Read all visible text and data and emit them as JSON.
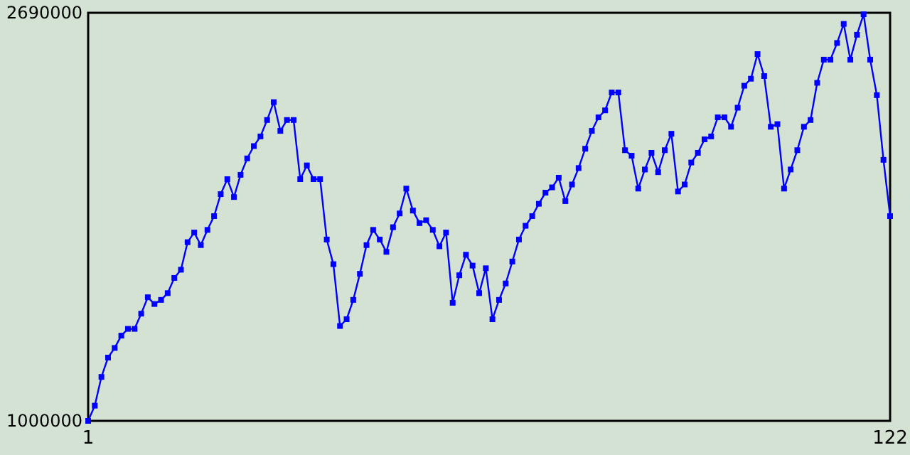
{
  "chart_data": {
    "type": "line",
    "marker": "square",
    "line_style": "solid",
    "x": [
      1,
      2,
      3,
      4,
      5,
      6,
      7,
      8,
      9,
      10,
      11,
      12,
      13,
      14,
      15,
      16,
      17,
      18,
      19,
      20,
      21,
      22,
      23,
      24,
      25,
      26,
      27,
      28,
      29,
      30,
      31,
      32,
      33,
      34,
      35,
      36,
      37,
      38,
      39,
      40,
      41,
      42,
      43,
      44,
      45,
      46,
      47,
      48,
      49,
      50,
      51,
      52,
      53,
      54,
      55,
      56,
      57,
      58,
      59,
      60,
      61,
      62,
      63,
      64,
      65,
      66,
      67,
      68,
      69,
      70,
      71,
      72,
      73,
      74,
      75,
      76,
      77,
      78,
      79,
      80,
      81,
      82,
      83,
      84,
      85,
      86,
      87,
      88,
      89,
      90,
      91,
      92,
      93,
      94,
      95,
      96,
      97,
      98,
      99,
      100,
      101,
      102,
      103,
      104,
      105,
      106,
      107,
      108,
      109,
      110,
      111,
      112,
      113,
      114,
      115,
      116,
      117,
      118,
      119,
      120,
      121,
      122
    ],
    "series": [
      {
        "color": "#0000ff",
        "values": [
          1000000,
          1063000,
          1182000,
          1262000,
          1302000,
          1353000,
          1381000,
          1381000,
          1444000,
          1512000,
          1484000,
          1501000,
          1529000,
          1592000,
          1626000,
          1740000,
          1780000,
          1728000,
          1791000,
          1848000,
          1939000,
          2001000,
          1927000,
          2019000,
          2087000,
          2138000,
          2178000,
          2246000,
          2320000,
          2201000,
          2246000,
          2246000,
          2001000,
          2058000,
          2001000,
          2001000,
          1751000,
          1649000,
          1393000,
          1421000,
          1501000,
          1609000,
          1728000,
          1791000,
          1751000,
          1700000,
          1802000,
          1859000,
          1962000,
          1871000,
          1819000,
          1831000,
          1791000,
          1723000,
          1780000,
          1489000,
          1603000,
          1688000,
          1643000,
          1529000,
          1632000,
          1421000,
          1501000,
          1569000,
          1660000,
          1751000,
          1808000,
          1848000,
          1899000,
          1945000,
          1967000,
          2007000,
          1910000,
          1979000,
          2047000,
          2127000,
          2201000,
          2257000,
          2286000,
          2360000,
          2360000,
          2121000,
          2098000,
          1962000,
          2041000,
          2110000,
          2030000,
          2121000,
          2189000,
          1950000,
          1979000,
          2070000,
          2110000,
          2166000,
          2178000,
          2257000,
          2257000,
          2218000,
          2297000,
          2388000,
          2417000,
          2519000,
          2428000,
          2218000,
          2229000,
          1962000,
          2041000,
          2121000,
          2218000,
          2246000,
          2400000,
          2496000,
          2496000,
          2565000,
          2644000,
          2496000,
          2599000,
          2684000,
          2496000,
          2349000,
          2081000,
          1848000
        ]
      }
    ],
    "xlim": [
      1,
      122
    ],
    "xticks": [
      1,
      122
    ],
    "ylim": [
      1000000,
      2690000
    ],
    "yticks": [
      1000000,
      2690000
    ]
  }
}
